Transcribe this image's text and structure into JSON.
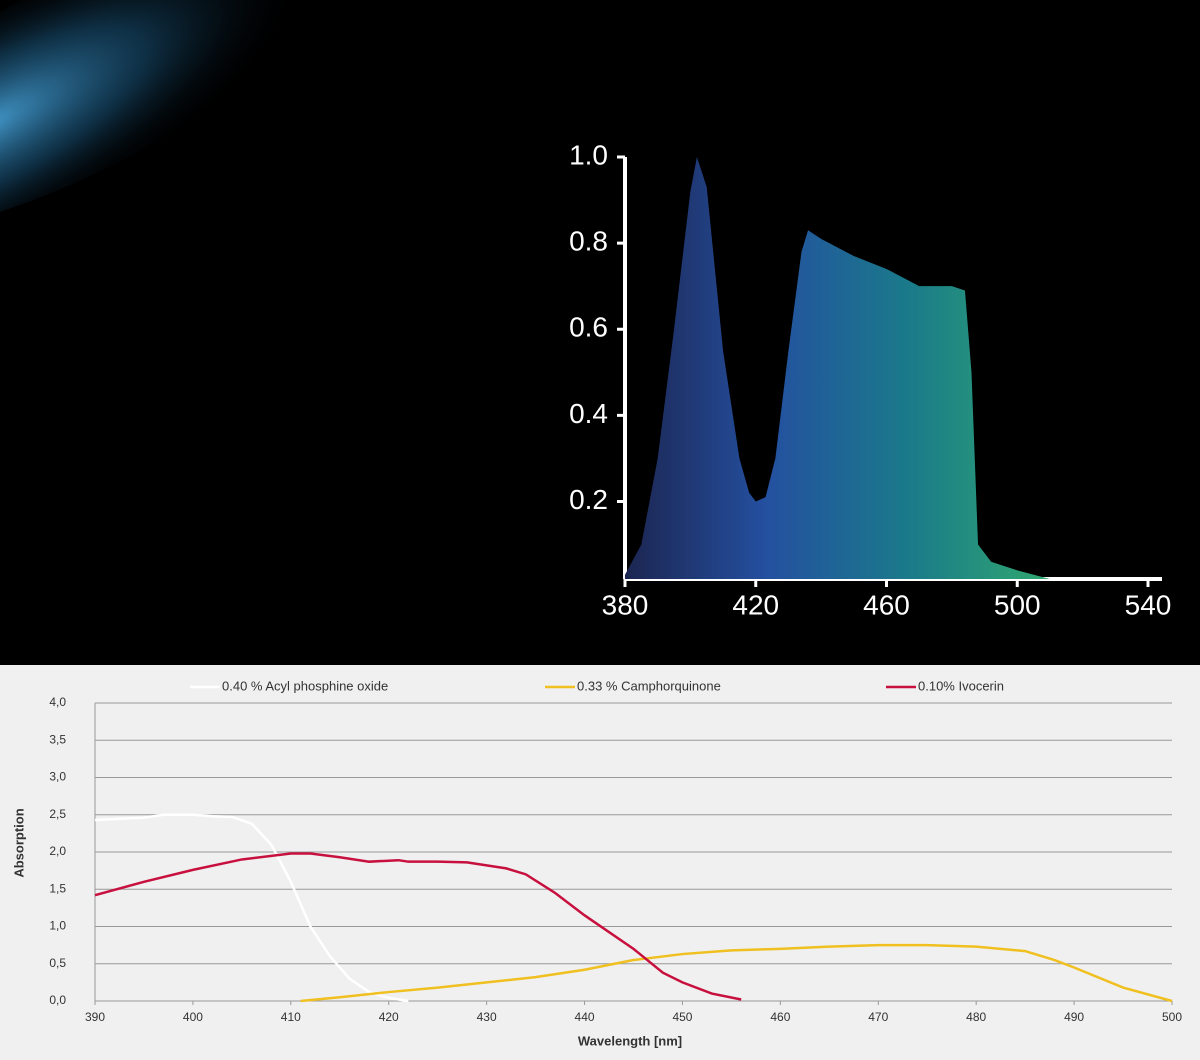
{
  "chart_data": [
    {
      "type": "area",
      "x": [
        380,
        385,
        390,
        395,
        400,
        402,
        405,
        410,
        415,
        418,
        420,
        423,
        426,
        430,
        434,
        436,
        440,
        450,
        460,
        470,
        480,
        484,
        486,
        488,
        492,
        500,
        510
      ],
      "series": [
        {
          "values": [
            0.03,
            0.1,
            0.3,
            0.6,
            0.92,
            1.0,
            0.93,
            0.55,
            0.3,
            0.22,
            0.2,
            0.21,
            0.3,
            0.55,
            0.78,
            0.83,
            0.81,
            0.77,
            0.74,
            0.7,
            0.7,
            0.69,
            0.5,
            0.1,
            0.06,
            0.04,
            0.02
          ],
          "gradient": [
            "#1c2550",
            "#2450a0",
            "#1a7a8a",
            "#30a870"
          ]
        }
      ],
      "xlim": [
        380,
        540
      ],
      "xticks": [
        380,
        420,
        460,
        500,
        540
      ],
      "ylim": [
        0.02,
        1
      ],
      "yticks": [
        0.2,
        0.4,
        0.6,
        0.8,
        {
          "value": 1,
          "label": "1.0"
        }
      ],
      "axis_color": "#ffffff"
    },
    {
      "type": "line",
      "xlabel": "Wavelength [nm]",
      "ylabel": "Absorption",
      "series": [
        {
          "name": "0.40 % Acyl phosphine oxide",
          "color": "#ffffff",
          "x": [
            390,
            393,
            395,
            397,
            400,
            402,
            404,
            406,
            408,
            410,
            412,
            414,
            416,
            418,
            420,
            422
          ],
          "values": [
            2.43,
            2.45,
            2.46,
            2.5,
            2.5,
            2.48,
            2.47,
            2.38,
            2.1,
            1.6,
            1.0,
            0.6,
            0.3,
            0.12,
            0.04,
            0.0
          ]
        },
        {
          "name": "0.33 % Camphorquinone",
          "color": "#f0c020",
          "x": [
            411,
            415,
            420,
            425,
            430,
            435,
            440,
            445,
            450,
            455,
            460,
            465,
            470,
            475,
            480,
            485,
            488,
            490,
            495,
            500
          ],
          "values": [
            0,
            0.05,
            0.12,
            0.18,
            0.25,
            0.32,
            0.42,
            0.55,
            0.63,
            0.68,
            0.7,
            0.73,
            0.75,
            0.75,
            0.73,
            0.67,
            0.55,
            0.45,
            0.18,
            0.0
          ]
        },
        {
          "name": "0.10% Ivocerin",
          "color": "#c8103e",
          "x": [
            390,
            395,
            400,
            405,
            410,
            412,
            415,
            418,
            421,
            422,
            425,
            428,
            432,
            434,
            437,
            440,
            445,
            448,
            450,
            453,
            456
          ],
          "values": [
            1.42,
            1.6,
            1.76,
            1.9,
            1.98,
            1.98,
            1.93,
            1.87,
            1.89,
            1.87,
            1.87,
            1.86,
            1.78,
            1.7,
            1.45,
            1.15,
            0.7,
            0.38,
            0.25,
            0.1,
            0.02
          ]
        }
      ],
      "xlim": [
        390,
        500
      ],
      "xticks": [
        390,
        400,
        410,
        420,
        430,
        440,
        450,
        460,
        470,
        480,
        490,
        500
      ],
      "ylim": [
        0,
        4
      ],
      "yticks": [
        {
          "value": 0,
          "label": "0,0"
        },
        {
          "value": 0.5,
          "label": "0,5"
        },
        {
          "value": 1,
          "label": "1,0"
        },
        {
          "value": 1.5,
          "label": "1,5"
        },
        {
          "value": 2,
          "label": "2,0"
        },
        {
          "value": 2.5,
          "label": "2,5"
        },
        {
          "value": 3,
          "label": "3,0"
        },
        {
          "value": 3.5,
          "label": "3,5"
        },
        {
          "value": 4,
          "label": "4,0"
        }
      ],
      "grid": true,
      "axis_color": "#999999"
    }
  ]
}
